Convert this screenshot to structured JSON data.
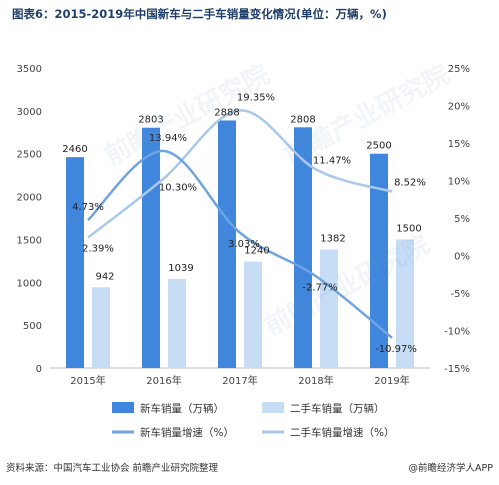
{
  "title": "图表6：2015-2019年中国新车与二手车销量变化情况(单位：万辆，%)",
  "footer": {
    "source": "资料来源：中国汽车工业协会 前瞻产业研究院整理",
    "brand": "@前瞻经济学人APP"
  },
  "watermark": "前瞻产业研究院",
  "colors": {
    "new_bar": "#3f86dc",
    "used_bar": "#c7ddf5",
    "new_line": "#6fa4e0",
    "used_line": "#a9c8ea",
    "axis_text": "#444444",
    "title": "#1f3e6b"
  },
  "chart_data": {
    "type": "bar",
    "categories": [
      "2015年",
      "2016年",
      "2017年",
      "2018年",
      "2019年"
    ],
    "series": [
      {
        "name": "新车销量（万辆）",
        "kind": "bar",
        "axis": "left",
        "values": [
          2460,
          2803,
          2888,
          2808,
          2500
        ],
        "labels": [
          "2460",
          "2803",
          "2888",
          "2808",
          "2500"
        ]
      },
      {
        "name": "二手车销量（万辆）",
        "kind": "bar",
        "axis": "left",
        "values": [
          942,
          1039,
          1240,
          1382,
          1500
        ],
        "labels": [
          "942",
          "1039",
          "1240",
          "1382",
          "1500"
        ]
      },
      {
        "name": "新车销量增速（%）",
        "kind": "line",
        "axis": "right",
        "values": [
          4.73,
          13.94,
          3.03,
          -2.77,
          -10.97
        ],
        "labels": [
          "4.73%",
          "13.94%",
          "3.03%",
          "-2.77%",
          "-10.97%"
        ]
      },
      {
        "name": "二手车销量增速（%）",
        "kind": "line",
        "axis": "right",
        "values": [
          2.39,
          10.3,
          19.35,
          11.47,
          8.52
        ],
        "labels": [
          "2.39%",
          "10.30%",
          "19.35%",
          "11.47%",
          "8.52%"
        ]
      }
    ],
    "y_left": {
      "min": 0,
      "max": 3500,
      "step": 500,
      "ticks": [
        "0",
        "500",
        "1000",
        "1500",
        "2000",
        "2500",
        "3000",
        "3500"
      ]
    },
    "y_right": {
      "min": -15,
      "max": 25,
      "step": 5,
      "ticks": [
        "-15%",
        "-10%",
        "-5%",
        "0%",
        "5%",
        "10%",
        "15%",
        "20%",
        "25%"
      ]
    },
    "grid": false,
    "legend_position": "bottom"
  }
}
